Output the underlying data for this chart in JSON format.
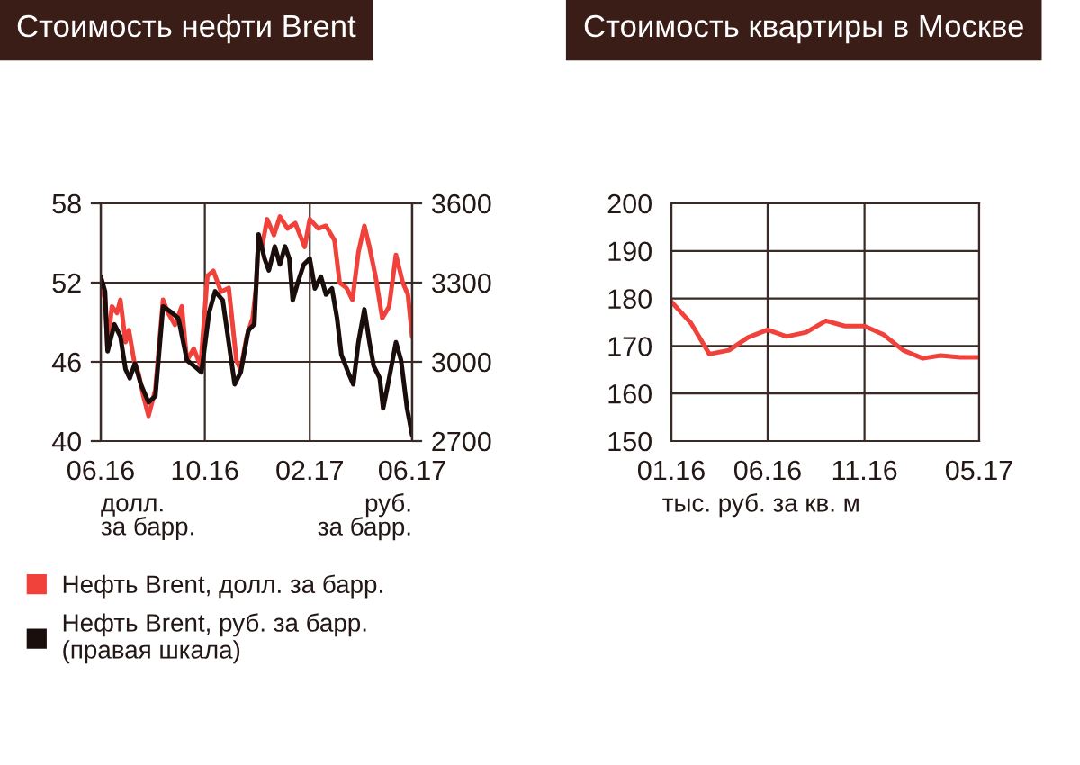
{
  "chart_data": [
    {
      "type": "line",
      "title": "Стоимость нефти Brent",
      "annotations": [
        "долл.\nза барр.",
        "руб.\nза барр."
      ],
      "xlim": [
        "2016-06-01",
        "2017-06-01"
      ],
      "xticks": [
        {
          "value": "2016-06-01",
          "label": "06.16"
        },
        {
          "value": "2016-10-01",
          "label": "10.16"
        },
        {
          "value": "2017-02-01",
          "label": "02.17"
        },
        {
          "value": "2017-06-01",
          "label": "06.17"
        }
      ],
      "ylim": [
        40,
        58
      ],
      "yticks": [
        40,
        46,
        52,
        58
      ],
      "y2lim": [
        2700,
        3600
      ],
      "y2ticks": [
        2700,
        3000,
        3300,
        3600
      ],
      "grid": true,
      "legend": "bottom",
      "series": [
        {
          "name": "Нефть Brent, руб. за барр.\n(правая шкала)",
          "color": "#1a0e0c",
          "axis": "y2",
          "x": [
            "2016-06-01",
            "2016-06-06",
            "2016-06-09",
            "2016-06-17",
            "2016-06-24",
            "2016-06-30",
            "2016-07-05",
            "2016-07-11",
            "2016-07-18",
            "2016-07-27",
            "2016-08-04",
            "2016-08-13",
            "2016-08-23",
            "2016-08-31",
            "2016-09-10",
            "2016-09-19",
            "2016-09-27",
            "2016-10-06",
            "2016-10-13",
            "2016-10-22",
            "2016-10-31",
            "2016-11-05",
            "2016-11-12",
            "2016-11-21",
            "2016-11-28",
            "2016-12-03",
            "2016-12-10",
            "2016-12-15",
            "2016-12-22",
            "2016-12-28",
            "2017-01-03",
            "2017-01-08",
            "2017-01-12",
            "2017-01-18",
            "2017-01-25",
            "2017-02-01",
            "2017-02-07",
            "2017-02-14",
            "2017-02-20",
            "2017-02-27",
            "2017-03-05",
            "2017-03-10",
            "2017-03-18",
            "2017-03-24",
            "2017-03-30",
            "2017-04-06",
            "2017-04-12",
            "2017-04-17",
            "2017-04-24",
            "2017-04-28",
            "2017-05-05",
            "2017-05-13",
            "2017-05-19",
            "2017-05-26",
            "2017-06-01"
          ],
          "values": [
            3323,
            3267,
            3040,
            3142,
            3097,
            2972,
            2938,
            2994,
            2915,
            2847,
            2870,
            3210,
            3187,
            3165,
            3006,
            2983,
            2960,
            3187,
            3267,
            3233,
            3028,
            2915,
            2960,
            3119,
            3142,
            3482,
            3391,
            3346,
            3437,
            3369,
            3437,
            3391,
            3233,
            3301,
            3369,
            3391,
            3278,
            3323,
            3255,
            3278,
            3165,
            3028,
            2960,
            2915,
            3074,
            3199,
            3074,
            2983,
            2938,
            2824,
            2938,
            3074,
            3006,
            2824,
            2722
          ]
        },
        {
          "name": "Нефть Brent, долл. за барр.",
          "color": "#f0413a",
          "x": [
            "2016-06-01",
            "2016-06-06",
            "2016-06-09",
            "2016-06-14",
            "2016-06-20",
            "2016-06-24",
            "2016-06-30",
            "2016-07-04",
            "2016-07-10",
            "2016-07-15",
            "2016-07-21",
            "2016-07-27",
            "2016-08-04",
            "2016-08-13",
            "2016-08-19",
            "2016-08-27",
            "2016-09-04",
            "2016-09-10",
            "2016-09-18",
            "2016-09-26",
            "2016-10-04",
            "2016-10-11",
            "2016-10-20",
            "2016-10-29",
            "2016-11-07",
            "2016-11-12",
            "2016-11-19",
            "2016-11-26",
            "2016-11-30",
            "2016-12-03",
            "2016-12-07",
            "2016-12-13",
            "2016-12-21",
            "2016-12-28",
            "2017-01-06",
            "2017-01-15",
            "2017-01-26",
            "2017-02-01",
            "2017-02-11",
            "2017-02-20",
            "2017-03-02",
            "2017-03-08",
            "2017-03-16",
            "2017-03-23",
            "2017-03-30",
            "2017-04-06",
            "2017-04-12",
            "2017-04-19",
            "2017-04-27",
            "2017-05-05",
            "2017-05-13",
            "2017-05-21",
            "2017-05-27",
            "2017-06-01"
          ],
          "values": [
            52.2,
            50.7,
            47.0,
            50.2,
            49.7,
            50.7,
            47.5,
            48.4,
            46.1,
            45.2,
            43.4,
            41.9,
            43.9,
            50.7,
            49.7,
            48.8,
            50.2,
            46.1,
            47.0,
            45.7,
            52.5,
            52.9,
            51.3,
            51.6,
            46.1,
            45.4,
            47.9,
            49.3,
            51.6,
            55.6,
            54.7,
            56.8,
            55.6,
            57.0,
            56.1,
            56.5,
            54.7,
            56.8,
            56.1,
            56.3,
            55.2,
            52.0,
            51.6,
            50.7,
            54.3,
            56.3,
            54.7,
            52.5,
            49.3,
            50.2,
            54.1,
            52.0,
            51.1,
            47.9
          ]
        }
      ]
    },
    {
      "type": "line",
      "title": "Стоимость квартиры в Москве",
      "annotations": [
        "тыс. руб. за кв. м"
      ],
      "x": [
        "2016-01",
        "2016-02",
        "2016-03",
        "2016-04",
        "2016-05",
        "2016-06",
        "2016-07",
        "2016-08",
        "2016-09",
        "2016-10",
        "2016-11",
        "2016-12",
        "2017-01",
        "2017-02",
        "2017-03",
        "2017-04",
        "2017-05"
      ],
      "xlim": [
        "2016-01",
        "2017-05"
      ],
      "xticks": [
        {
          "value": "2016-01",
          "label": "01.16"
        },
        {
          "value": "2016-06",
          "label": "06.16"
        },
        {
          "value": "2016-11",
          "label": "11.16"
        },
        {
          "value": "2017-05",
          "label": "05.17"
        }
      ],
      "ylim": [
        150,
        200
      ],
      "yticks": [
        150,
        160,
        170,
        180,
        190,
        200
      ],
      "grid": true,
      "series": [
        {
          "color": "#f0413a",
          "values": [
            179.3,
            174.8,
            168.3,
            169.1,
            171.8,
            173.4,
            172.0,
            172.9,
            175.3,
            174.2,
            174.2,
            172.4,
            169.1,
            167.4,
            168.0,
            167.6,
            167.6
          ]
        }
      ]
    }
  ]
}
